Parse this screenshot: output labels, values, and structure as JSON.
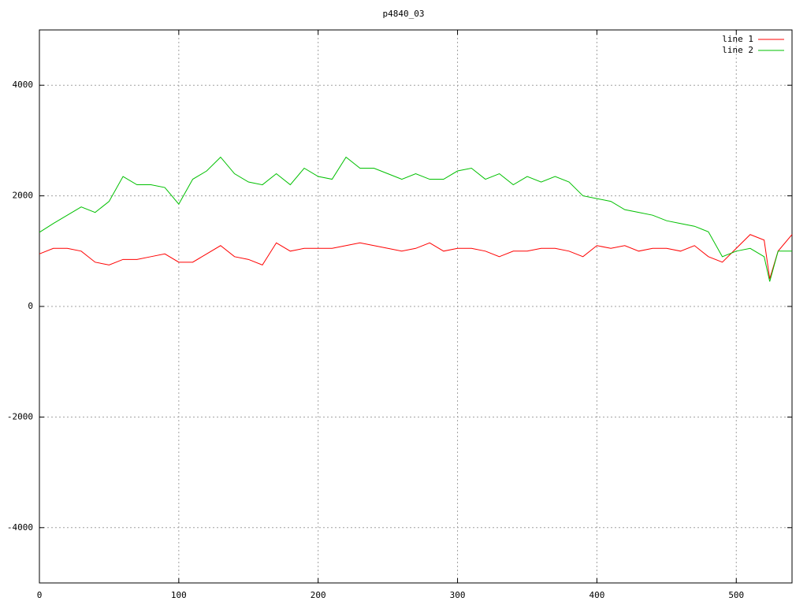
{
  "chart_data": {
    "type": "line",
    "title": "p4840_03",
    "x": [
      0,
      10,
      20,
      30,
      40,
      50,
      60,
      70,
      80,
      90,
      100,
      110,
      120,
      130,
      140,
      150,
      160,
      170,
      180,
      190,
      200,
      210,
      220,
      230,
      240,
      250,
      260,
      270,
      280,
      290,
      300,
      310,
      320,
      330,
      340,
      350,
      360,
      370,
      380,
      390,
      400,
      410,
      420,
      430,
      440,
      450,
      460,
      470,
      480,
      490,
      500,
      510,
      520,
      524,
      530,
      540
    ],
    "series": [
      {
        "name": "line 1",
        "color": "#ff0000",
        "values": [
          950,
          1050,
          1050,
          1000,
          800,
          750,
          850,
          850,
          900,
          950,
          800,
          800,
          950,
          1100,
          900,
          850,
          750,
          1150,
          1000,
          1050,
          1050,
          1050,
          1100,
          1150,
          1100,
          1050,
          1000,
          1050,
          1150,
          1000,
          1050,
          1050,
          1000,
          900,
          1000,
          1000,
          1050,
          1050,
          1000,
          900,
          1100,
          1050,
          1100,
          1000,
          1050,
          1050,
          1000,
          1100,
          900,
          800,
          1050,
          1300,
          1200,
          500,
          1000,
          1300
        ]
      },
      {
        "name": "line 2",
        "color": "#00c000",
        "values": [
          1340,
          1500,
          1650,
          1800,
          1700,
          1900,
          2350,
          2200,
          2200,
          2150,
          1850,
          2300,
          2450,
          2700,
          2400,
          2250,
          2200,
          2400,
          2200,
          2500,
          2350,
          2300,
          2700,
          2500,
          2500,
          2400,
          2300,
          2400,
          2300,
          2300,
          2450,
          2500,
          2300,
          2400,
          2200,
          2350,
          2250,
          2350,
          2250,
          2000,
          1950,
          1900,
          1750,
          1700,
          1650,
          1550,
          1500,
          1450,
          1350,
          900,
          1000,
          1050,
          900,
          450,
          1000,
          1000
        ]
      }
    ],
    "xlim": [
      0,
      540
    ],
    "xticks": [
      0,
      100,
      200,
      300,
      400,
      500
    ],
    "ylim": [
      -5000,
      5000
    ],
    "yticks": [
      -4000,
      -2000,
      0,
      2000,
      4000
    ],
    "grid": true,
    "legend": "top-right"
  }
}
